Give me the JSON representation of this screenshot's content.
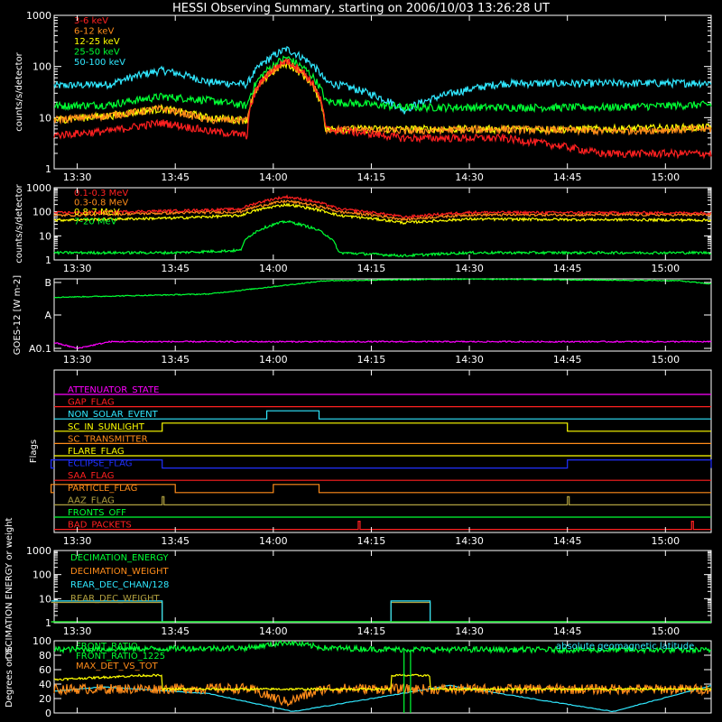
{
  "title": "HESSI Observing Summary, starting on 2006/10/03 13:26:28 UT",
  "time_ticks": [
    "13:30",
    "13:45",
    "14:00",
    "14:15",
    "14:30",
    "14:45",
    "15:00"
  ],
  "time_range": [
    "13:26:28",
    "15:07"
  ],
  "colors": {
    "axes": "#ffffff",
    "red": "#ff2020",
    "orange": "#ff8c1a",
    "yellow": "#ffff00",
    "green": "#00ff33",
    "cyan": "#30e8ff",
    "magenta": "#ff00ff",
    "blue": "#2030ff",
    "olive": "#b0a040"
  },
  "chart_data": [
    {
      "id": "low-energy",
      "type": "line",
      "ylabel": "counts/s/detector",
      "yscale": "log",
      "ylim": [
        1,
        1000
      ],
      "yticks": [
        "1",
        "10",
        "100",
        "1000"
      ],
      "series": [
        {
          "name": "3-6 keV",
          "color": "#ff2020",
          "x": [
            "13:26",
            "13:35",
            "13:43",
            "13:50",
            "13:56",
            "14:02",
            "14:08",
            "14:20",
            "14:35",
            "14:50",
            "15:07"
          ],
          "y": [
            4.5,
            5.5,
            8,
            5.5,
            4.5,
            130,
            6,
            4,
            4,
            2,
            2
          ]
        },
        {
          "name": "6-12 keV",
          "color": "#ff8c1a",
          "x": [
            "13:26",
            "13:35",
            "13:43",
            "13:50",
            "13:56",
            "14:02",
            "14:08",
            "14:20",
            "14:35",
            "14:50",
            "15:07"
          ],
          "y": [
            9,
            11,
            15,
            9,
            9,
            120,
            6,
            5.5,
            6,
            5.5,
            6
          ]
        },
        {
          "name": "12-25 keV",
          "color": "#ffff00",
          "x": [
            "13:26",
            "13:35",
            "13:43",
            "13:50",
            "13:56",
            "14:02",
            "14:08",
            "14:20",
            "14:35",
            "14:50",
            "15:07"
          ],
          "y": [
            9,
            11,
            15,
            10,
            9,
            115,
            6,
            6,
            6,
            6,
            6.5
          ]
        },
        {
          "name": "25-50 keV",
          "color": "#00ff33",
          "x": [
            "13:26",
            "13:35",
            "13:43",
            "13:50",
            "13:56",
            "14:02",
            "14:08",
            "14:20",
            "14:35",
            "14:50",
            "15:07"
          ],
          "y": [
            17,
            18,
            26,
            22,
            17,
            150,
            21,
            16,
            16,
            16,
            18
          ]
        },
        {
          "name": "50-100 keV",
          "color": "#30e8ff",
          "x": [
            "13:26",
            "13:35",
            "13:43",
            "13:50",
            "13:56",
            "14:02",
            "14:08",
            "14:20",
            "14:35",
            "14:50",
            "15:07"
          ],
          "y": [
            42,
            45,
            85,
            50,
            45,
            220,
            50,
            14,
            47,
            47,
            48
          ]
        }
      ]
    },
    {
      "id": "high-energy",
      "type": "line",
      "ylabel": "counts/s/detector",
      "yscale": "log",
      "ylim": [
        1,
        1000
      ],
      "yticks": [
        "1",
        "10",
        "100",
        "1000"
      ],
      "series": [
        {
          "name": "0.1-0.3 MeV",
          "color": "#ff2020",
          "x": [
            "13:26",
            "13:45",
            "13:55",
            "14:02",
            "14:10",
            "14:20",
            "14:30",
            "15:07"
          ],
          "y": [
            90,
            110,
            130,
            420,
            130,
            60,
            95,
            90
          ]
        },
        {
          "name": "0.3-0.8 MeV",
          "color": "#ff8c1a",
          "x": [
            "13:26",
            "13:45",
            "13:55",
            "14:02",
            "14:10",
            "14:20",
            "14:30",
            "15:07"
          ],
          "y": [
            70,
            90,
            100,
            280,
            100,
            48,
            75,
            75
          ]
        },
        {
          "name": "0.8-7 MeV",
          "color": "#ffff00",
          "x": [
            "13:26",
            "13:45",
            "13:55",
            "14:02",
            "14:10",
            "14:20",
            "14:30",
            "15:07"
          ],
          "y": [
            45,
            55,
            70,
            200,
            70,
            35,
            50,
            45
          ]
        },
        {
          "name": "7-20 MeV",
          "color": "#00ff33",
          "x": [
            "13:26",
            "13:45",
            "13:55",
            "14:02",
            "14:10",
            "14:20",
            "14:30",
            "15:07"
          ],
          "y": [
            2,
            2,
            2.5,
            40,
            2,
            1.5,
            2,
            2
          ]
        }
      ]
    },
    {
      "id": "goes",
      "type": "line",
      "ylabel": "GOES-12 [W m-2]",
      "yscale": "log",
      "yticks": [
        "A0.1",
        "A",
        "B"
      ],
      "series": [
        {
          "color": "#00ff33",
          "x": [
            "13:26",
            "13:50",
            "14:08",
            "14:30",
            "15:02",
            "15:07"
          ],
          "y": [
            1.5,
            1.6,
            2.0,
            2.05,
            2.0,
            1.9
          ]
        },
        {
          "color": "#ff00ff",
          "x": [
            "13:26",
            "13:30",
            "13:35",
            "14:00",
            "15:07"
          ],
          "y": [
            0.2,
            0.0,
            0.2,
            0.2,
            0.2
          ]
        }
      ]
    },
    {
      "id": "flags",
      "type": "line",
      "ylabel": "Flags",
      "series": [
        {
          "name": "ATTENUATOR_STATE",
          "color": "#ff00ff",
          "segments": []
        },
        {
          "name": "GAP_FLAG",
          "color": "#ff2020",
          "segments": []
        },
        {
          "name": "NON_SOLAR_EVENT",
          "color": "#30e8ff",
          "segments": [
            [
              "13:59",
              "14:07"
            ]
          ]
        },
        {
          "name": "SC_IN_SUNLIGHT",
          "color": "#ffff00",
          "segments": [
            [
              "13:43",
              "14:45"
            ]
          ]
        },
        {
          "name": "SC_TRANSMITTER",
          "color": "#ff8c1a",
          "segments": []
        },
        {
          "name": "FLARE_FLAG",
          "color": "#ffff00",
          "segments": []
        },
        {
          "name": "ECLIPSE_FLAG",
          "color": "#2030ff",
          "segments": [
            [
              "13:26",
              "13:43"
            ],
            [
              "14:45",
              "15:07"
            ]
          ]
        },
        {
          "name": "SAA_FLAG",
          "color": "#ff2020",
          "segments": []
        },
        {
          "name": "PARTICLE_FLAG",
          "color": "#ff8c1a",
          "segments": [
            [
              "13:26",
              "13:45"
            ],
            [
              "14:00",
              "14:07"
            ]
          ]
        },
        {
          "name": "AAZ_FLAG",
          "color": "#b0a040",
          "segments": [
            [
              "13:43",
              "13:43"
            ],
            [
              "14:45",
              "14:45"
            ]
          ]
        },
        {
          "name": "FRONTS_OFF",
          "color": "#00ff33",
          "segments": []
        },
        {
          "name": "BAD_PACKETS",
          "color": "#ff2020",
          "segments": [
            [
              "14:13",
              "14:13"
            ],
            [
              "15:04",
              "15:04"
            ]
          ]
        }
      ]
    },
    {
      "id": "decimation",
      "type": "line",
      "ylabel": "DECIMATION ENERGY or weight",
      "yscale": "log",
      "ylim": [
        1,
        1000
      ],
      "yticks": [
        "1",
        "10",
        "100",
        "1000"
      ],
      "series": [
        {
          "name": "DECIMATION_ENERGY",
          "color": "#00ff33",
          "x": [
            "13:26",
            "15:07"
          ],
          "y": [
            1,
            1
          ]
        },
        {
          "name": "DECIMATION_WEIGHT",
          "color": "#ff8c1a",
          "x": [
            "13:26",
            "15:07"
          ],
          "y": [
            1,
            1
          ]
        },
        {
          "name": "REAR_DEC_CHAN/128",
          "color": "#30e8ff",
          "x": [
            "13:26",
            "13:43",
            "13:43",
            "14:18",
            "14:18",
            "14:24",
            "14:24",
            "15:07"
          ],
          "y": [
            8,
            8,
            1,
            1,
            8,
            8,
            1,
            1
          ]
        },
        {
          "name": "REAR_DEC_WEIGHT",
          "color": "#b0a040",
          "x": [
            "13:26",
            "13:43",
            "13:43",
            "14:18",
            "14:18",
            "14:24",
            "14:24",
            "15:07"
          ],
          "y": [
            7,
            7,
            1,
            1,
            7,
            7,
            1,
            1
          ]
        }
      ]
    },
    {
      "id": "ratios",
      "type": "line",
      "ylabel": "Degrees or %",
      "ylim": [
        0,
        100
      ],
      "yticks": [
        "0",
        "20",
        "40",
        "60",
        "80",
        "100"
      ],
      "annotation": "absolute geomagnetic latitude",
      "series": [
        {
          "name": "FRONT_RATIO",
          "color": "#00ff33",
          "x": [
            "13:26",
            "13:56",
            "14:02",
            "14:08",
            "14:18",
            "14:24",
            "15:07"
          ],
          "y": [
            88,
            90,
            98,
            90,
            88,
            88,
            87
          ]
        },
        {
          "name": "FRONT_RATIO_1225",
          "color": "#00ff33",
          "x": [
            "13:26",
            "14:20",
            "14:20",
            "14:21",
            "14:21",
            "15:07"
          ],
          "y": [
            88,
            88,
            0,
            0,
            88,
            88
          ]
        },
        {
          "name": "MAX_DET_VS_TOT",
          "color": "#ff8c1a",
          "x": [
            "13:26",
            "13:56",
            "14:02",
            "14:08",
            "14:20",
            "15:07"
          ],
          "y": [
            33,
            34,
            15,
            34,
            33,
            33
          ]
        },
        {
          "color": "#ffff00",
          "x": [
            "13:26",
            "13:40",
            "13:43",
            "13:43",
            "14:18",
            "14:18",
            "14:24",
            "14:24",
            "15:07"
          ],
          "y": [
            46,
            52,
            52,
            33,
            33,
            52,
            52,
            33,
            33
          ]
        },
        {
          "name": "absolute geomagnetic latitude",
          "color": "#30e8ff",
          "x": [
            "13:26",
            "13:34",
            "13:50",
            "14:03",
            "14:27",
            "14:52",
            "15:07"
          ],
          "y": [
            30,
            36,
            27,
            2,
            38,
            2,
            38
          ]
        }
      ]
    }
  ]
}
